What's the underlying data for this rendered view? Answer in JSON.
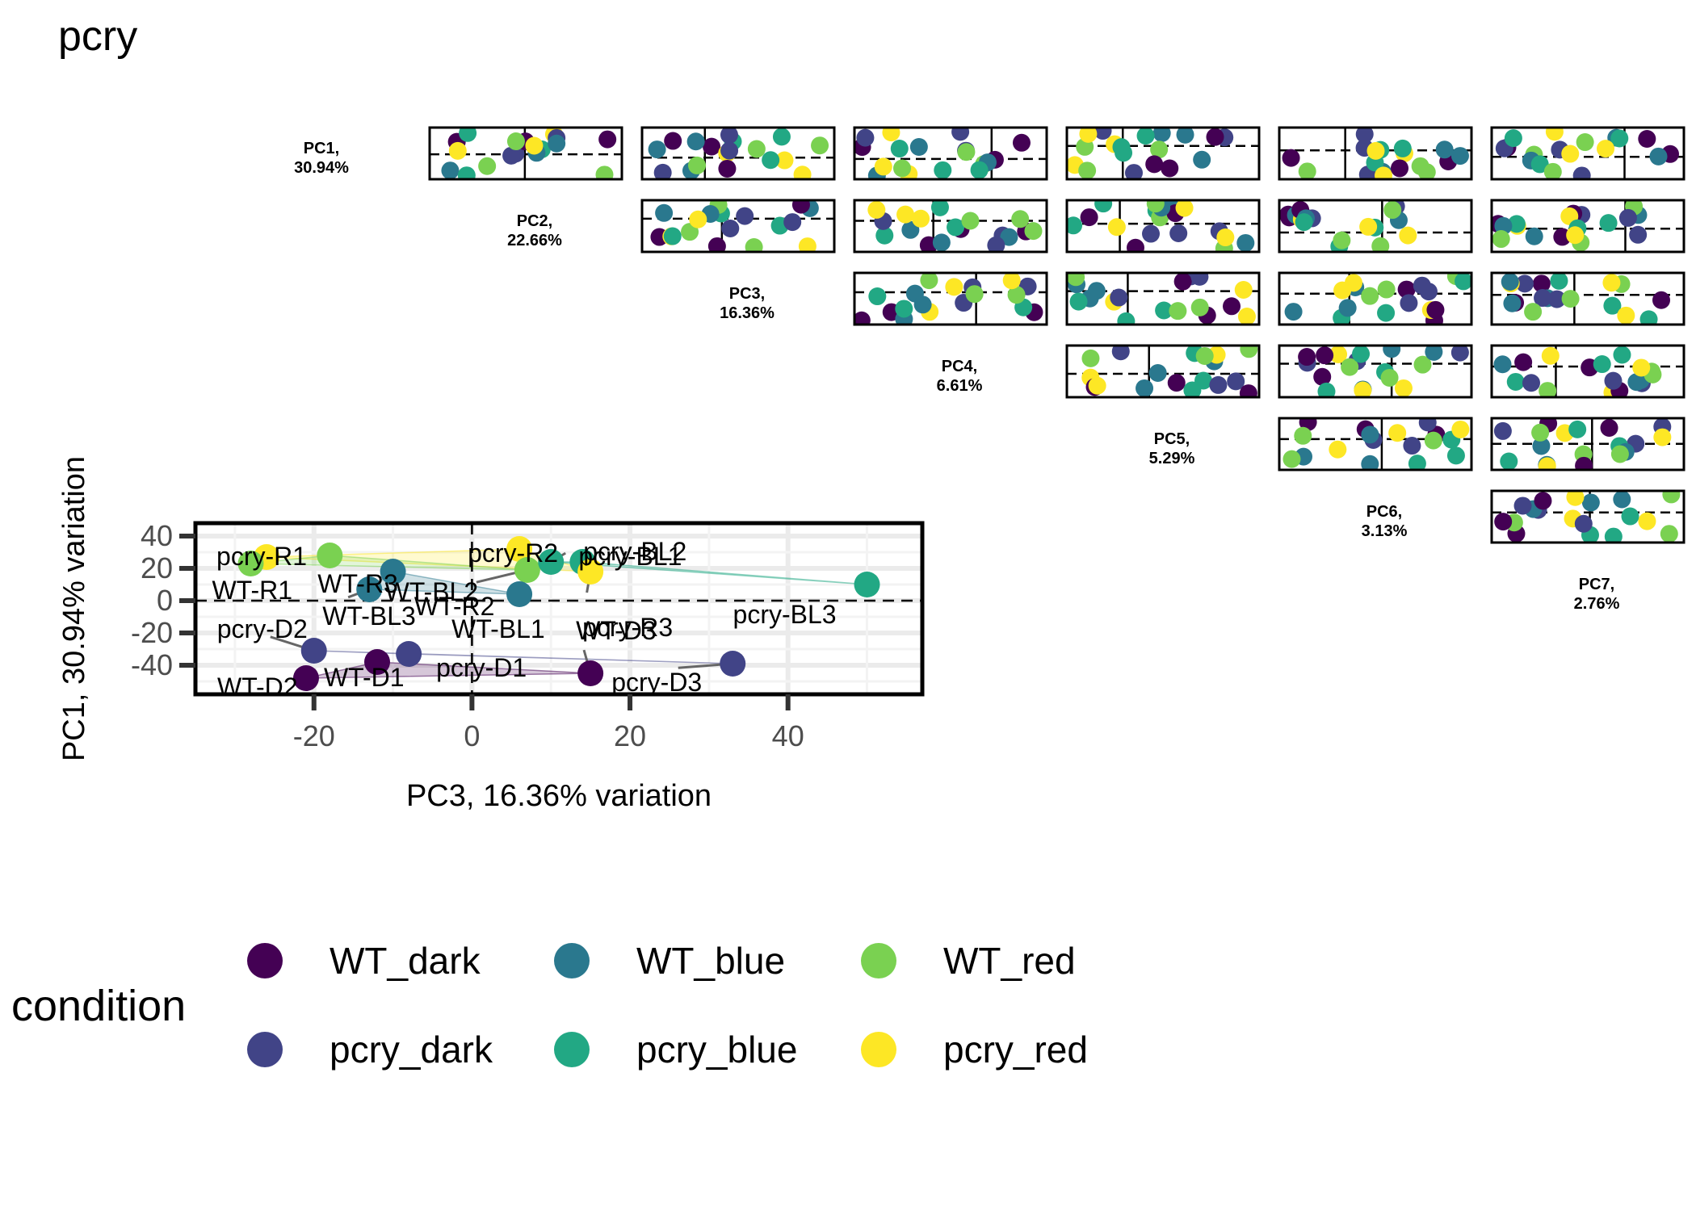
{
  "title": "pcry",
  "colors": {
    "WT_dark": "#440154",
    "pcry_dark": "#414487",
    "WT_blue": "#2A788E",
    "pcry_blue": "#22A884",
    "WT_red": "#7AD151",
    "pcry_red": "#FDE725"
  },
  "legend": {
    "title": "condition",
    "items": [
      "WT_dark",
      "WT_blue",
      "WT_red",
      "pcry_dark",
      "pcry_blue",
      "pcry_red"
    ]
  },
  "diagonal_labels": [
    {
      "pc": "PC1,",
      "pct": "30.94%"
    },
    {
      "pc": "PC2,",
      "pct": "22.66%"
    },
    {
      "pc": "PC3,",
      "pct": "16.36%"
    },
    {
      "pc": "PC4,",
      "pct": "6.61%"
    },
    {
      "pc": "PC5,",
      "pct": "5.29%"
    },
    {
      "pc": "PC6,",
      "pct": "3.13%"
    },
    {
      "pc": "PC7,",
      "pct": "2.76%"
    }
  ],
  "chart_data": {
    "type": "scatter",
    "title": "pcry",
    "xlabel": "PC3, 16.36% variation",
    "ylabel": "PC1, 30.94% variation",
    "xlim": [
      -35,
      57
    ],
    "ylim": [
      -58,
      48
    ],
    "xticks": [
      -20,
      0,
      20,
      40
    ],
    "yticks": [
      40,
      20,
      0,
      -20,
      -40
    ],
    "grid": true,
    "legend_position": "bottom",
    "reference_lines": {
      "x": 0,
      "y": 0
    },
    "points": [
      {
        "label": "pcry-R1",
        "group": "pcry_red",
        "x": -26,
        "y": 27
      },
      {
        "label": "WT-R1",
        "group": "WT_red",
        "x": -28,
        "y": 23
      },
      {
        "label": "WT-R3",
        "group": "WT_red",
        "x": -18,
        "y": 28
      },
      {
        "label": "WT-BL2",
        "group": "WT_blue",
        "x": -10,
        "y": 18
      },
      {
        "label": "pcry-R2",
        "group": "pcry_red",
        "x": 6,
        "y": 32
      },
      {
        "label": "pcry-BL1",
        "group": "pcry_blue",
        "x": 14,
        "y": 24
      },
      {
        "label": "WT-R2",
        "group": "WT_red",
        "x": 7,
        "y": 19
      },
      {
        "label": "pcry-BL2",
        "group": "pcry_blue",
        "x": 10,
        "y": 24
      },
      {
        "label": "WT-BL3",
        "group": "WT_blue",
        "x": -13,
        "y": 7
      },
      {
        "label": "WT-BL1",
        "group": "WT_blue",
        "x": 6,
        "y": 4
      },
      {
        "label": "pcry-R3",
        "group": "pcry_red",
        "x": 15,
        "y": 18
      },
      {
        "label": "pcry-BL3",
        "group": "pcry_blue",
        "x": 50,
        "y": 10
      },
      {
        "label": "pcry-D2",
        "group": "pcry_dark",
        "x": -20,
        "y": -31
      },
      {
        "label": "WT-D2",
        "group": "WT_dark",
        "x": -12,
        "y": -38
      },
      {
        "label": "pcry-D1",
        "group": "pcry_dark",
        "x": -8,
        "y": -33
      },
      {
        "label": "WT-D1",
        "group": "WT_dark",
        "x": -21,
        "y": -48
      },
      {
        "label": "WT-D3",
        "group": "WT_dark",
        "x": 15,
        "y": -45
      },
      {
        "label": "pcry-D3",
        "group": "pcry_dark",
        "x": 33,
        "y": -39
      }
    ]
  }
}
